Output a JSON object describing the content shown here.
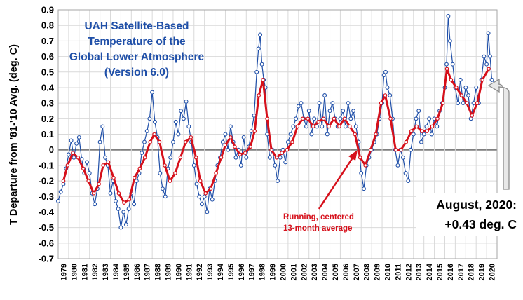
{
  "chart_data": {
    "type": "line",
    "title_lines": [
      "UAH Satellite-Based",
      "Temperature of the",
      "Global Lower Atmosphere",
      "(Version 6.0)"
    ],
    "ylabel": "T Departure from '81-'10 Avg. (deg. C)",
    "xlabel": "",
    "ylim": [
      -0.7,
      0.9
    ],
    "y_ticks": [
      "0.9",
      "0.8",
      "0.7",
      "0.6",
      "0.5",
      "0.4",
      "0.3",
      "0.2",
      "0.1",
      "0",
      "-0.1",
      "-0.2",
      "-0.3",
      "-0.4",
      "-0.5",
      "-0.6",
      "-0.7"
    ],
    "x_ticks": [
      "1979",
      "1980",
      "1981",
      "1982",
      "1983",
      "1984",
      "1985",
      "1986",
      "1987",
      "1988",
      "1989",
      "1990",
      "1991",
      "1992",
      "1993",
      "1994",
      "1995",
      "1996",
      "1997",
      "1998",
      "1999",
      "2000",
      "2001",
      "2002",
      "2003",
      "2004",
      "2005",
      "2006",
      "2007",
      "2008",
      "2009",
      "2010",
      "2011",
      "2012",
      "2013",
      "2014",
      "2015",
      "2016",
      "2017",
      "2018",
      "2019",
      "2020"
    ],
    "grid": true,
    "series": [
      {
        "role": "monthly",
        "color": "#1f4fa8",
        "x": [
          1979.0,
          1979.25,
          1979.5,
          1979.75,
          1980.0,
          1980.25,
          1980.5,
          1980.75,
          1981.0,
          1981.25,
          1981.5,
          1981.75,
          1982.0,
          1982.25,
          1982.5,
          1982.75,
          1983.0,
          1983.25,
          1983.5,
          1983.75,
          1984.0,
          1984.25,
          1984.5,
          1984.75,
          1985.0,
          1985.25,
          1985.5,
          1985.75,
          1986.0,
          1986.25,
          1986.5,
          1986.75,
          1987.0,
          1987.25,
          1987.5,
          1987.75,
          1988.0,
          1988.25,
          1988.5,
          1988.75,
          1989.0,
          1989.25,
          1989.5,
          1989.75,
          1990.0,
          1990.25,
          1990.5,
          1990.75,
          1991.0,
          1991.25,
          1991.5,
          1991.75,
          1992.0,
          1992.25,
          1992.5,
          1992.75,
          1993.0,
          1993.25,
          1993.5,
          1993.75,
          1994.0,
          1994.25,
          1994.5,
          1994.75,
          1995.0,
          1995.25,
          1995.5,
          1995.75,
          1996.0,
          1996.25,
          1996.5,
          1996.75,
          1997.0,
          1997.25,
          1997.5,
          1997.75,
          1998.0,
          1998.17,
          1998.33,
          1998.5,
          1998.67,
          1998.83,
          1999.0,
          1999.25,
          1999.5,
          1999.75,
          2000.0,
          2000.25,
          2000.5,
          2000.75,
          2001.0,
          2001.25,
          2001.5,
          2001.75,
          2002.0,
          2002.25,
          2002.5,
          2002.75,
          2003.0,
          2003.25,
          2003.5,
          2003.75,
          2004.0,
          2004.25,
          2004.5,
          2004.75,
          2005.0,
          2005.25,
          2005.5,
          2005.75,
          2006.0,
          2006.25,
          2006.5,
          2006.75,
          2007.0,
          2007.25,
          2007.5,
          2007.75,
          2008.0,
          2008.25,
          2008.5,
          2008.75,
          2009.0,
          2009.25,
          2009.5,
          2009.75,
          2010.0,
          2010.17,
          2010.33,
          2010.5,
          2010.75,
          2011.0,
          2011.25,
          2011.5,
          2011.75,
          2012.0,
          2012.25,
          2012.5,
          2012.75,
          2013.0,
          2013.25,
          2013.5,
          2013.75,
          2014.0,
          2014.25,
          2014.5,
          2014.75,
          2015.0,
          2015.25,
          2015.5,
          2015.75,
          2016.0,
          2016.17,
          2016.33,
          2016.5,
          2016.75,
          2017.0,
          2017.25,
          2017.5,
          2017.75,
          2018.0,
          2018.25,
          2018.5,
          2018.75,
          2019.0,
          2019.25,
          2019.5,
          2019.75,
          2020.0,
          2020.17,
          2020.33,
          2020.5,
          2020.58
        ],
        "values": [
          -0.33,
          -0.27,
          -0.22,
          -0.12,
          -0.03,
          0.06,
          -0.05,
          0.04,
          0.08,
          -0.06,
          -0.15,
          -0.08,
          -0.15,
          -0.28,
          -0.35,
          -0.25,
          0.05,
          0.15,
          -0.05,
          -0.1,
          -0.28,
          -0.2,
          -0.33,
          -0.38,
          -0.5,
          -0.4,
          -0.48,
          -0.38,
          -0.28,
          -0.35,
          -0.2,
          -0.15,
          -0.02,
          0.05,
          0.12,
          0.2,
          0.37,
          0.18,
          0.08,
          -0.15,
          -0.25,
          -0.3,
          -0.12,
          -0.05,
          0.05,
          0.18,
          0.1,
          0.25,
          0.2,
          0.31,
          0.15,
          0.05,
          -0.1,
          -0.22,
          -0.3,
          -0.35,
          -0.3,
          -0.4,
          -0.25,
          -0.32,
          -0.2,
          -0.1,
          -0.05,
          0.05,
          0.1,
          0.0,
          0.15,
          0.05,
          -0.05,
          0.0,
          -0.1,
          0.08,
          -0.05,
          0.02,
          0.12,
          0.22,
          0.5,
          0.65,
          0.74,
          0.55,
          0.45,
          0.4,
          0.1,
          -0.05,
          0.0,
          -0.1,
          -0.2,
          -0.05,
          0.0,
          -0.08,
          0.05,
          0.1,
          0.15,
          0.2,
          0.28,
          0.3,
          0.2,
          0.15,
          0.25,
          0.1,
          0.2,
          0.15,
          0.3,
          0.15,
          0.35,
          0.1,
          0.25,
          0.3,
          0.2,
          0.15,
          0.2,
          0.25,
          0.15,
          0.3,
          0.2,
          0.25,
          0.15,
          0.05,
          -0.15,
          -0.25,
          -0.1,
          -0.05,
          0.0,
          0.05,
          0.1,
          0.2,
          0.3,
          0.48,
          0.5,
          0.4,
          0.35,
          0.2,
          0.0,
          -0.1,
          0.0,
          -0.05,
          -0.15,
          -0.2,
          0.0,
          0.1,
          0.2,
          0.25,
          0.05,
          0.1,
          0.15,
          0.2,
          0.1,
          0.2,
          0.15,
          0.25,
          0.3,
          0.4,
          0.55,
          0.86,
          0.7,
          0.55,
          0.4,
          0.3,
          0.45,
          0.3,
          0.4,
          0.35,
          0.2,
          0.3,
          0.4,
          0.3,
          0.45,
          0.6,
          0.55,
          0.75,
          0.6,
          0.45,
          0.43
        ]
      },
      {
        "role": "13-month-average",
        "color": "#d6101b",
        "x": [
          1979.5,
          1979.9,
          1980.4,
          1980.9,
          1981.4,
          1981.9,
          1982.4,
          1982.9,
          1983.3,
          1983.8,
          1984.3,
          1984.8,
          1985.3,
          1985.8,
          1986.3,
          1986.8,
          1987.3,
          1987.8,
          1988.2,
          1988.7,
          1989.2,
          1989.7,
          1990.2,
          1990.7,
          1991.2,
          1991.7,
          1992.2,
          1992.6,
          1993.1,
          1993.6,
          1994.1,
          1994.6,
          1995.0,
          1995.5,
          1995.9,
          1996.4,
          1996.9,
          1997.4,
          1997.8,
          1998.2,
          1998.6,
          1999.0,
          1999.4,
          1999.9,
          2000.4,
          2000.9,
          2001.4,
          2001.9,
          2002.4,
          2002.9,
          2003.4,
          2003.9,
          2004.4,
          2004.9,
          2005.4,
          2005.9,
          2006.4,
          2006.9,
          2007.4,
          2007.9,
          2008.4,
          2008.9,
          2009.4,
          2009.9,
          2010.3,
          2010.8,
          2011.3,
          2011.8,
          2012.3,
          2012.8,
          2013.3,
          2013.8,
          2014.3,
          2014.8,
          2015.3,
          2015.8,
          2016.2,
          2016.6,
          2017.1,
          2017.6,
          2018.1,
          2018.6,
          2019.1,
          2019.6,
          2020.2
        ],
        "values": [
          -0.2,
          -0.1,
          -0.02,
          -0.05,
          -0.12,
          -0.2,
          -0.28,
          -0.22,
          -0.1,
          -0.08,
          -0.18,
          -0.28,
          -0.34,
          -0.32,
          -0.18,
          -0.12,
          -0.05,
          0.05,
          0.1,
          0.05,
          -0.1,
          -0.2,
          -0.15,
          -0.05,
          0.05,
          0.08,
          -0.05,
          -0.2,
          -0.28,
          -0.25,
          -0.15,
          -0.05,
          0.03,
          0.08,
          0.02,
          -0.03,
          -0.02,
          0.02,
          0.12,
          0.35,
          0.45,
          0.2,
          0.0,
          -0.05,
          -0.02,
          0.0,
          0.05,
          0.15,
          0.2,
          0.2,
          0.15,
          0.18,
          0.2,
          0.15,
          0.2,
          0.15,
          0.2,
          0.15,
          0.1,
          -0.05,
          -0.1,
          0.0,
          0.1,
          0.3,
          0.35,
          0.2,
          0.0,
          0.0,
          0.05,
          0.12,
          0.15,
          0.12,
          0.12,
          0.15,
          0.2,
          0.3,
          0.52,
          0.45,
          0.4,
          0.35,
          0.3,
          0.22,
          0.3,
          0.45,
          0.52
        ]
      }
    ],
    "annotations": {
      "running_average": [
        "Running, centered",
        "13-month average"
      ],
      "latest": [
        "August, 2020:",
        "+0.43 deg. C"
      ]
    }
  }
}
